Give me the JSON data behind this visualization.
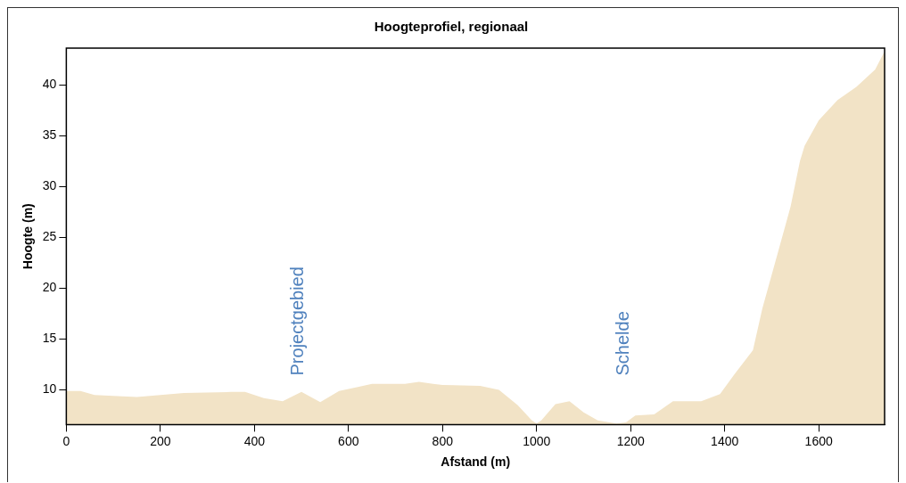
{
  "chart_data": {
    "type": "area",
    "title": "Hoogteprofiel, regionaal",
    "xlabel": "Afstand (m)",
    "ylabel": "Hoogte (m)",
    "series": [
      {
        "color": "#f2e3c6",
        "x": [
          0,
          30,
          60,
          150,
          200,
          250,
          350,
          380,
          420,
          460,
          500,
          540,
          580,
          620,
          650,
          720,
          750,
          780,
          800,
          880,
          920,
          960,
          990,
          1000,
          1010,
          1040,
          1070,
          1100,
          1130,
          1170,
          1190,
          1210,
          1250,
          1290,
          1350,
          1390,
          1420,
          1460,
          1480,
          1510,
          1540,
          1560,
          1570,
          1600,
          1640,
          1680,
          1720,
          1740
        ],
        "values": [
          9.9,
          9.9,
          9.5,
          9.3,
          9.5,
          9.7,
          9.8,
          9.8,
          9.2,
          8.9,
          9.8,
          8.8,
          9.9,
          10.3,
          10.6,
          10.6,
          10.8,
          10.6,
          10.5,
          10.4,
          10,
          8.5,
          7,
          6.7,
          7,
          8.6,
          8.9,
          7.8,
          7,
          6.7,
          6.8,
          7.5,
          7.6,
          8.9,
          8.9,
          9.6,
          11.5,
          13.9,
          18,
          23,
          28,
          32.5,
          34,
          36.5,
          38.5,
          39.8,
          41.5,
          43.3
        ]
      }
    ],
    "xlim": [
      0,
      1740
    ],
    "xticks": [
      0,
      200,
      400,
      600,
      800,
      1000,
      1200,
      1400,
      1600
    ],
    "ylim": [
      6.6,
      43.6
    ],
    "yticks": [
      10,
      15,
      20,
      25,
      30,
      35,
      40
    ],
    "grid": false,
    "legend": false,
    "annotations": [
      "Projectgebied",
      "Schelde"
    ]
  }
}
